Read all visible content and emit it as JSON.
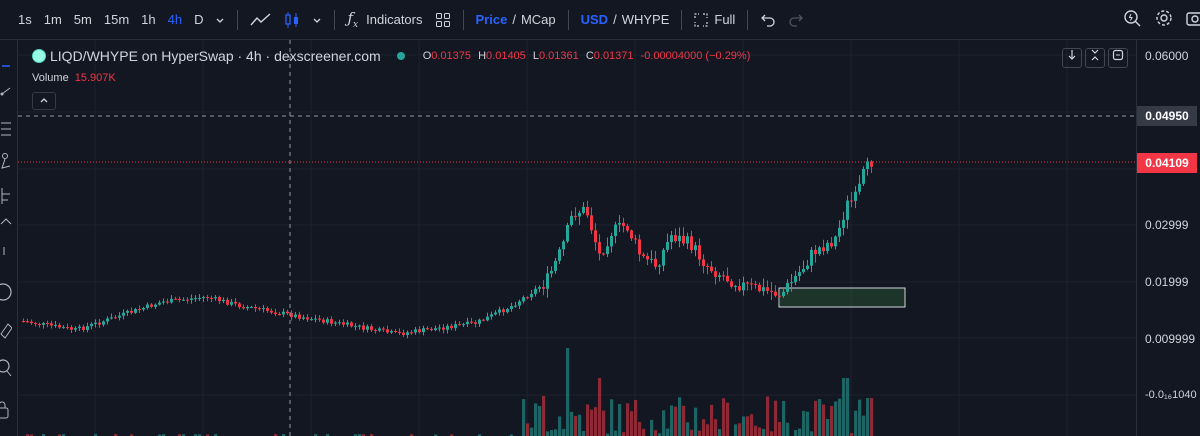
{
  "toolbar": {
    "timeframes": [
      "1s",
      "1m",
      "5m",
      "15m",
      "1h",
      "4h",
      "D"
    ],
    "active_timeframe": "4h",
    "indicators_label": "Indicators",
    "price_label": "Price",
    "mcap_label": "MCap",
    "usd_label": "USD",
    "whype_label": "WHYPE",
    "full_label": "Full",
    "slash": "/"
  },
  "legend": {
    "title": "LIQD/WHYPE on HyperSwap · 4h · dexscreener.com",
    "o_key": "O",
    "o_val": "0.01375",
    "h_key": "H",
    "h_val": "0.01405",
    "l_key": "L",
    "l_val": "0.01361",
    "c_key": "C",
    "c_val": "0.01371",
    "change": "-0.00004000 (−0.29%)",
    "volume_label": "Volume",
    "volume_value": "15.907K"
  },
  "price_axis": {
    "labels": [
      "0.06000",
      "0.02999",
      "0.01999",
      "0.009999",
      "-0.0₁₆1040"
    ],
    "crosshair_price": "0.04950",
    "last_price": "0.04109"
  },
  "colors": {
    "up": "#26a69a",
    "down": "#f23645",
    "background": "#131722",
    "accent": "#2962ff"
  },
  "chart_data": {
    "type": "candlestick",
    "volume_series": "Volume"
  }
}
